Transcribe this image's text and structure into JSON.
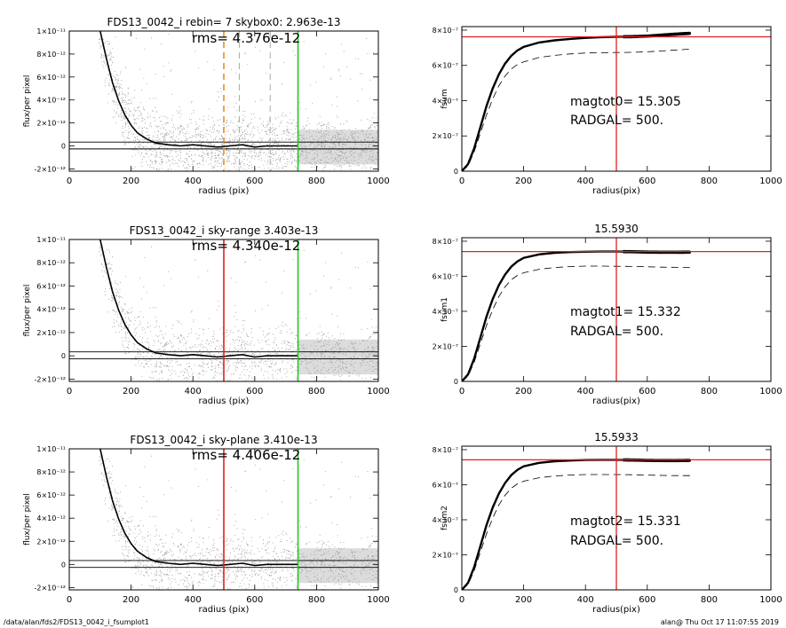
{
  "footer": {
    "left": "/data/alan/fds2/FDS13_0042_i_fsumplot1",
    "right": "alan@  Thu Oct 17 11:07:55 2019"
  },
  "colors": {
    "scatter": "#9a9a9a",
    "profile": "#000000",
    "red_marker": "#e02020",
    "green_marker": "#22cc22",
    "orange_marker": "#f08a20",
    "gray_marker": "#a0a0a0"
  },
  "chart_data": [
    {
      "id": "left1",
      "type": "scatter",
      "title": "FDS13_0042_i rebin= 7    skybox0:  2.963e-13",
      "annotations": [
        "rms= 4.376e-12"
      ],
      "xlabel": "radius (pix)",
      "ylabel": "flux/per pixel",
      "xlim": [
        0,
        1000
      ],
      "ylim": [
        -2.2e-12,
        1e-11
      ],
      "x_ticks": [
        0,
        200,
        400,
        600,
        800,
        1000
      ],
      "y_ticks": [
        -2e-12,
        0,
        2e-12,
        4e-12,
        6e-12,
        8e-12,
        1e-11
      ],
      "y_tick_labels": [
        "-2×10⁻¹²",
        "0",
        "2×10⁻¹²",
        "4×10⁻¹²",
        "6×10⁻¹²",
        "8×10⁻¹²",
        "1×10⁻¹¹"
      ],
      "profile": {
        "x": [
          100,
          120,
          140,
          160,
          180,
          200,
          220,
          250,
          280,
          320,
          360,
          400,
          440,
          480,
          520,
          560,
          600,
          640,
          680,
          740
        ],
        "y": [
          1e-11,
          7.6e-12,
          5.5e-12,
          3.9e-12,
          2.7e-12,
          1.8e-12,
          1.15e-12,
          6e-13,
          2.5e-13,
          1e-13,
          0,
          1e-13,
          0,
          -1e-13,
          0,
          1e-13,
          -1e-13,
          0,
          0,
          0
        ]
      },
      "sky_lines": [
        3.3e-13,
        -2.6e-13
      ],
      "vlines": [
        {
          "x": 500,
          "color": "orange",
          "style": "dashed"
        },
        {
          "x": 550,
          "color": "gray",
          "style": "dashed"
        },
        {
          "x": 650,
          "color": "gray",
          "style": "dashed"
        },
        {
          "x": 740,
          "color": "green",
          "style": "solid"
        }
      ]
    },
    {
      "id": "right1",
      "type": "line",
      "title": "",
      "annotations": [
        "magtot0=  15.305",
        "RADGAL=    500."
      ],
      "xlabel": "radius(pix)",
      "ylabel": "fsum",
      "xlim": [
        0,
        1000
      ],
      "ylim": [
        0,
        8.2e-07
      ],
      "x_ticks": [
        0,
        200,
        400,
        600,
        800,
        1000
      ],
      "y_ticks": [
        0,
        2e-07,
        4e-07,
        6e-07,
        8e-07
      ],
      "y_tick_labels": [
        "0",
        "2×10⁻⁷",
        "4×10⁻⁷",
        "6×10⁻⁷",
        "8×10⁻⁷"
      ],
      "curve": {
        "x": [
          0,
          20,
          40,
          60,
          80,
          100,
          120,
          140,
          160,
          180,
          200,
          250,
          300,
          350,
          400,
          450,
          500,
          550,
          600,
          650,
          700,
          740
        ],
        "y": [
          0,
          4e-08,
          1.3e-07,
          2.5e-07,
          3.7e-07,
          4.7e-07,
          5.5e-07,
          6.1e-07,
          6.55e-07,
          6.85e-07,
          7.05e-07,
          7.3e-07,
          7.42e-07,
          7.5e-07,
          7.56e-07,
          7.6e-07,
          7.62e-07,
          7.63e-07,
          7.66e-07,
          7.72e-07,
          7.78e-07,
          7.82e-07
        ]
      },
      "dashed_curve": {
        "x": [
          0,
          20,
          40,
          60,
          80,
          100,
          120,
          140,
          160,
          180,
          200,
          250,
          300,
          350,
          400,
          450,
          500,
          550,
          600,
          650,
          700,
          740
        ],
        "y": [
          0,
          3e-08,
          1.1e-07,
          2.15e-07,
          3.2e-07,
          4.1e-07,
          4.85e-07,
          5.4e-07,
          5.8e-07,
          6.05e-07,
          6.2e-07,
          6.45e-07,
          6.57e-07,
          6.65e-07,
          6.7e-07,
          6.72e-07,
          6.73e-07,
          6.74e-07,
          6.77e-07,
          6.82e-07,
          6.88e-07,
          6.92e-07
        ]
      },
      "hline": 7.62e-07,
      "vline": 500
    },
    {
      "id": "left2",
      "type": "scatter",
      "title": "FDS13_0042_i sky-range  3.403e-13",
      "annotations": [
        "rms= 4.340e-12"
      ],
      "xlabel": "radius (pix)",
      "ylabel": "flux/per pixel",
      "xlim": [
        0,
        1000
      ],
      "ylim": [
        -2.2e-12,
        1e-11
      ],
      "x_ticks": [
        0,
        200,
        400,
        600,
        800,
        1000
      ],
      "y_ticks": [
        -2e-12,
        0,
        2e-12,
        4e-12,
        6e-12,
        8e-12,
        1e-11
      ],
      "y_tick_labels": [
        "-2×10⁻¹²",
        "0",
        "2×10⁻¹²",
        "4×10⁻¹²",
        "6×10⁻¹²",
        "8×10⁻¹²",
        "1×10⁻¹¹"
      ],
      "profile": {
        "x": [
          100,
          120,
          140,
          160,
          180,
          200,
          220,
          250,
          280,
          320,
          360,
          400,
          440,
          480,
          520,
          560,
          600,
          640,
          680,
          740
        ],
        "y": [
          1e-11,
          7.6e-12,
          5.5e-12,
          3.9e-12,
          2.7e-12,
          1.8e-12,
          1.15e-12,
          6e-13,
          2.5e-13,
          1e-13,
          0,
          1e-13,
          0,
          -1e-13,
          0,
          1e-13,
          -1e-13,
          0,
          0,
          0
        ]
      },
      "sky_lines": [
        3.4e-13,
        -2.6e-13
      ],
      "vlines": [
        {
          "x": 500,
          "color": "red",
          "style": "solid"
        },
        {
          "x": 740,
          "color": "green",
          "style": "solid"
        }
      ]
    },
    {
      "id": "right2",
      "type": "line",
      "title": "15.5930",
      "annotations": [
        "magtot1=  15.332",
        "RADGAL=    500."
      ],
      "xlabel": "radius(pix)",
      "ylabel": "fsum1",
      "xlim": [
        0,
        1000
      ],
      "ylim": [
        0,
        8.2e-07
      ],
      "x_ticks": [
        0,
        200,
        400,
        600,
        800,
        1000
      ],
      "y_ticks": [
        0,
        2e-07,
        4e-07,
        6e-07,
        8e-07
      ],
      "y_tick_labels": [
        "0",
        "2×10⁻⁷",
        "4×10⁻⁷",
        "6×10⁻⁷",
        "8×10⁻⁷"
      ],
      "curve": {
        "x": [
          0,
          20,
          40,
          60,
          80,
          100,
          120,
          140,
          160,
          180,
          200,
          250,
          300,
          350,
          400,
          450,
          500,
          550,
          600,
          650,
          700,
          740
        ],
        "y": [
          0,
          4e-08,
          1.3e-07,
          2.5e-07,
          3.7e-07,
          4.7e-07,
          5.5e-07,
          6.1e-07,
          6.55e-07,
          6.85e-07,
          7.05e-07,
          7.25e-07,
          7.34e-07,
          7.38e-07,
          7.4e-07,
          7.41e-07,
          7.41e-07,
          7.4e-07,
          7.38e-07,
          7.37e-07,
          7.37e-07,
          7.38e-07
        ]
      },
      "dashed_curve": {
        "x": [
          0,
          20,
          40,
          60,
          80,
          100,
          120,
          140,
          160,
          180,
          200,
          250,
          300,
          350,
          400,
          450,
          500,
          550,
          600,
          650,
          700,
          740
        ],
        "y": [
          0,
          3e-08,
          1.1e-07,
          2.15e-07,
          3.2e-07,
          4.1e-07,
          4.85e-07,
          5.4e-07,
          5.8e-07,
          6.05e-07,
          6.2e-07,
          6.4e-07,
          6.5e-07,
          6.55e-07,
          6.58e-07,
          6.58e-07,
          6.57e-07,
          6.56e-07,
          6.54e-07,
          6.52e-07,
          6.51e-07,
          6.51e-07
        ]
      },
      "hline": 7.41e-07,
      "vline": 500
    },
    {
      "id": "left3",
      "type": "scatter",
      "title": "FDS13_0042_i sky-plane  3.410e-13",
      "annotations": [
        "rms= 4.406e-12"
      ],
      "xlabel": "radius (pix)",
      "ylabel": "flux/per pixel",
      "xlim": [
        0,
        1000
      ],
      "ylim": [
        -2.2e-12,
        1e-11
      ],
      "x_ticks": [
        0,
        200,
        400,
        600,
        800,
        1000
      ],
      "y_ticks": [
        -2e-12,
        0,
        2e-12,
        4e-12,
        6e-12,
        8e-12,
        1e-11
      ],
      "y_tick_labels": [
        "-2×10⁻¹²",
        "0",
        "2×10⁻¹²",
        "4×10⁻¹²",
        "6×10⁻¹²",
        "8×10⁻¹²",
        "1×10⁻¹¹"
      ],
      "profile": {
        "x": [
          100,
          120,
          140,
          160,
          180,
          200,
          220,
          250,
          280,
          320,
          360,
          400,
          440,
          480,
          520,
          560,
          600,
          640,
          680,
          740
        ],
        "y": [
          1e-11,
          7.6e-12,
          5.5e-12,
          3.9e-12,
          2.7e-12,
          1.8e-12,
          1.15e-12,
          6e-13,
          2.5e-13,
          1e-13,
          0,
          1e-13,
          0,
          -1e-13,
          0,
          1e-13,
          -1e-13,
          0,
          0,
          0
        ]
      },
      "sky_lines": [
        3.4e-13,
        -2.6e-13
      ],
      "vlines": [
        {
          "x": 500,
          "color": "red",
          "style": "solid"
        },
        {
          "x": 740,
          "color": "green",
          "style": "solid"
        }
      ]
    },
    {
      "id": "right3",
      "type": "line",
      "title": "15.5933",
      "annotations": [
        "magtot2=  15.331",
        "RADGAL=    500."
      ],
      "xlabel": "radius(pix)",
      "ylabel": "fsum2",
      "xlim": [
        0,
        1000
      ],
      "ylim": [
        0,
        8.2e-07
      ],
      "x_ticks": [
        0,
        200,
        400,
        600,
        800,
        1000
      ],
      "y_ticks": [
        0,
        2e-07,
        4e-07,
        6e-07,
        8e-07
      ],
      "y_tick_labels": [
        "0",
        "2×10⁻⁷",
        "4×10⁻⁷",
        "6×10⁻⁷",
        "8×10⁻⁷"
      ],
      "curve": {
        "x": [
          0,
          20,
          40,
          60,
          80,
          100,
          120,
          140,
          160,
          180,
          200,
          250,
          300,
          350,
          400,
          450,
          500,
          550,
          600,
          650,
          700,
          740
        ],
        "y": [
          0,
          4e-08,
          1.3e-07,
          2.5e-07,
          3.7e-07,
          4.7e-07,
          5.5e-07,
          6.1e-07,
          6.55e-07,
          6.85e-07,
          7.05e-07,
          7.25e-07,
          7.34e-07,
          7.38e-07,
          7.41e-07,
          7.42e-07,
          7.42e-07,
          7.41e-07,
          7.39e-07,
          7.38e-07,
          7.38e-07,
          7.39e-07
        ]
      },
      "dashed_curve": {
        "x": [
          0,
          20,
          40,
          60,
          80,
          100,
          120,
          140,
          160,
          180,
          200,
          250,
          300,
          350,
          400,
          450,
          500,
          550,
          600,
          650,
          700,
          740
        ],
        "y": [
          0,
          3e-08,
          1.1e-07,
          2.15e-07,
          3.2e-07,
          4.1e-07,
          4.85e-07,
          5.4e-07,
          5.8e-07,
          6.05e-07,
          6.2e-07,
          6.4e-07,
          6.5e-07,
          6.55e-07,
          6.58e-07,
          6.58e-07,
          6.58e-07,
          6.57e-07,
          6.55e-07,
          6.53e-07,
          6.52e-07,
          6.52e-07
        ]
      },
      "hline": 7.42e-07,
      "vline": 500
    }
  ]
}
